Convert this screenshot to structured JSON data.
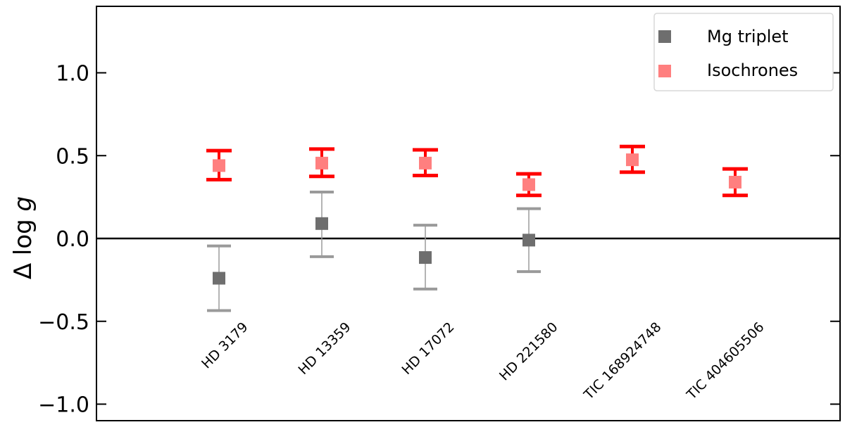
{
  "chart_data": {
    "type": "scatter",
    "ylabel_prefix": "Δ log ",
    "ylabel_var": "g",
    "ylim": [
      -1.1,
      1.4
    ],
    "yticks": [
      1.0,
      0.5,
      0.0,
      -0.5,
      -1.0
    ],
    "ytick_labels": [
      "1.0",
      "0.5",
      "0.0",
      "−0.5",
      "−1.0"
    ],
    "reference_line": 0.0,
    "categories": [
      "HD 3179",
      "HD 13359",
      "HD 17072",
      "HD 221580",
      "TIC 168924748",
      "TIC 404605506"
    ],
    "series": [
      {
        "name": "Mg triplet",
        "marker_color": "#6e6e6e",
        "errorbar_color": "#9a9a9a",
        "values": [
          -0.24,
          0.09,
          -0.115,
          -0.01,
          null,
          null
        ],
        "err_low": [
          0.195,
          0.2,
          0.19,
          0.19,
          null,
          null
        ],
        "err_high": [
          0.195,
          0.19,
          0.195,
          0.19,
          null,
          null
        ]
      },
      {
        "name": "Isochrones",
        "marker_color": "#ff7f7f",
        "errorbar_color": "#ff0000",
        "values": [
          0.44,
          0.455,
          0.455,
          0.325,
          0.475,
          0.34
        ],
        "err_low": [
          0.085,
          0.08,
          0.075,
          0.065,
          0.075,
          0.08
        ],
        "err_high": [
          0.09,
          0.085,
          0.08,
          0.065,
          0.08,
          0.08
        ]
      }
    ],
    "legend_position": "top-right"
  }
}
